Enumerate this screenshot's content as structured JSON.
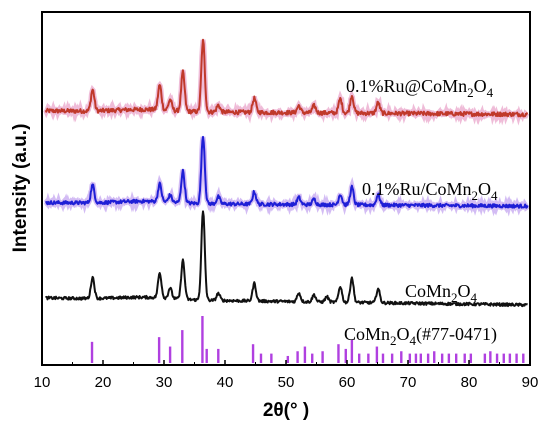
{
  "chart_data": {
    "type": "line",
    "xlabel": "2θ(° )",
    "ylabel": "Intensity (a.u.)",
    "xlim": [
      10,
      90
    ],
    "x_ticks": [
      10,
      20,
      30,
      40,
      50,
      60,
      70,
      80,
      90
    ],
    "y_ticks_shown": false,
    "grid": false,
    "series": [
      {
        "name": "0.1%Ru@CoMn2O4",
        "label_main": "0.1%Ru@CoMn",
        "label_sub": "2",
        "label_main2": "O",
        "label_sub2": "4",
        "color": "#c0392b",
        "halo": "#e8a0c8",
        "baseline_level": 0.72,
        "noise": 0.006,
        "peaks": [
          {
            "x": 18.3,
            "h": 0.06
          },
          {
            "x": 29.3,
            "h": 0.07
          },
          {
            "x": 31.0,
            "h": 0.03
          },
          {
            "x": 33.1,
            "h": 0.11
          },
          {
            "x": 36.4,
            "h": 0.2
          },
          {
            "x": 38.9,
            "h": 0.02
          },
          {
            "x": 44.8,
            "h": 0.04
          },
          {
            "x": 52.1,
            "h": 0.02
          },
          {
            "x": 54.6,
            "h": 0.02
          },
          {
            "x": 58.9,
            "h": 0.04
          },
          {
            "x": 60.8,
            "h": 0.05
          },
          {
            "x": 65.1,
            "h": 0.03
          }
        ],
        "tail_drop": 0.01
      },
      {
        "name": "0.1%Ru/CoMn2O4",
        "label_main": "0.1%Ru/CoMn",
        "label_sub": "2",
        "label_main2": "O",
        "label_sub2": "4",
        "color": "#1f1fd6",
        "halo": "#c0a0f0",
        "baseline_level": 0.46,
        "noise": 0.005,
        "peaks": [
          {
            "x": 18.3,
            "h": 0.05
          },
          {
            "x": 29.3,
            "h": 0.05
          },
          {
            "x": 31.0,
            "h": 0.02
          },
          {
            "x": 33.1,
            "h": 0.09
          },
          {
            "x": 36.4,
            "h": 0.19
          },
          {
            "x": 38.9,
            "h": 0.02
          },
          {
            "x": 44.8,
            "h": 0.035
          },
          {
            "x": 52.1,
            "h": 0.02
          },
          {
            "x": 54.6,
            "h": 0.015
          },
          {
            "x": 58.9,
            "h": 0.03
          },
          {
            "x": 60.8,
            "h": 0.05
          },
          {
            "x": 65.1,
            "h": 0.03
          }
        ],
        "tail_drop": 0.01
      },
      {
        "name": "CoMn2O4",
        "label_main": "CoMn",
        "label_sub": "2",
        "label_main2": "O",
        "label_sub2": "4",
        "color": "#111111",
        "halo": "",
        "baseline_level": 0.19,
        "noise": 0.004,
        "peaks": [
          {
            "x": 18.3,
            "h": 0.06
          },
          {
            "x": 29.3,
            "h": 0.07
          },
          {
            "x": 31.0,
            "h": 0.03
          },
          {
            "x": 33.1,
            "h": 0.11
          },
          {
            "x": 36.4,
            "h": 0.25
          },
          {
            "x": 38.9,
            "h": 0.02
          },
          {
            "x": 44.8,
            "h": 0.05
          },
          {
            "x": 52.1,
            "h": 0.025
          },
          {
            "x": 54.6,
            "h": 0.02
          },
          {
            "x": 56.7,
            "h": 0.015
          },
          {
            "x": 58.9,
            "h": 0.045
          },
          {
            "x": 60.8,
            "h": 0.07
          },
          {
            "x": 65.1,
            "h": 0.04
          }
        ],
        "tail_drop": 0.02
      }
    ],
    "reference": {
      "name": "CoMn2O4(#77-0471)",
      "label_main": "CoMn",
      "label_sub": "2",
      "label_main2": "O",
      "label_sub2": "4",
      "label_tail": "(#77-0471)",
      "color": "#b040e0",
      "sticks": [
        {
          "x": 18.2,
          "h": 0.45
        },
        {
          "x": 29.2,
          "h": 0.55
        },
        {
          "x": 31.0,
          "h": 0.35
        },
        {
          "x": 33.0,
          "h": 0.7
        },
        {
          "x": 36.3,
          "h": 1.0
        },
        {
          "x": 37.0,
          "h": 0.3
        },
        {
          "x": 38.9,
          "h": 0.3
        },
        {
          "x": 44.6,
          "h": 0.4
        },
        {
          "x": 45.9,
          "h": 0.2
        },
        {
          "x": 47.6,
          "h": 0.2
        },
        {
          "x": 50.3,
          "h": 0.15
        },
        {
          "x": 51.9,
          "h": 0.25
        },
        {
          "x": 53.1,
          "h": 0.35
        },
        {
          "x": 54.3,
          "h": 0.2
        },
        {
          "x": 56.0,
          "h": 0.25
        },
        {
          "x": 58.6,
          "h": 0.4
        },
        {
          "x": 59.8,
          "h": 0.3
        },
        {
          "x": 60.8,
          "h": 0.5
        },
        {
          "x": 62.0,
          "h": 0.2
        },
        {
          "x": 63.5,
          "h": 0.2
        },
        {
          "x": 64.9,
          "h": 0.35
        },
        {
          "x": 65.9,
          "h": 0.2
        },
        {
          "x": 67.4,
          "h": 0.2
        },
        {
          "x": 68.9,
          "h": 0.25
        },
        {
          "x": 70.3,
          "h": 0.2
        },
        {
          "x": 71.3,
          "h": 0.2
        },
        {
          "x": 72.1,
          "h": 0.2
        },
        {
          "x": 73.3,
          "h": 0.2
        },
        {
          "x": 74.3,
          "h": 0.25
        },
        {
          "x": 75.6,
          "h": 0.2
        },
        {
          "x": 76.7,
          "h": 0.2
        },
        {
          "x": 77.9,
          "h": 0.2
        },
        {
          "x": 79.3,
          "h": 0.2
        },
        {
          "x": 80.3,
          "h": 0.2
        },
        {
          "x": 82.6,
          "h": 0.2
        },
        {
          "x": 83.5,
          "h": 0.25
        },
        {
          "x": 84.6,
          "h": 0.2
        },
        {
          "x": 85.7,
          "h": 0.2
        },
        {
          "x": 86.7,
          "h": 0.2
        },
        {
          "x": 87.8,
          "h": 0.2
        },
        {
          "x": 88.9,
          "h": 0.2
        }
      ]
    }
  }
}
